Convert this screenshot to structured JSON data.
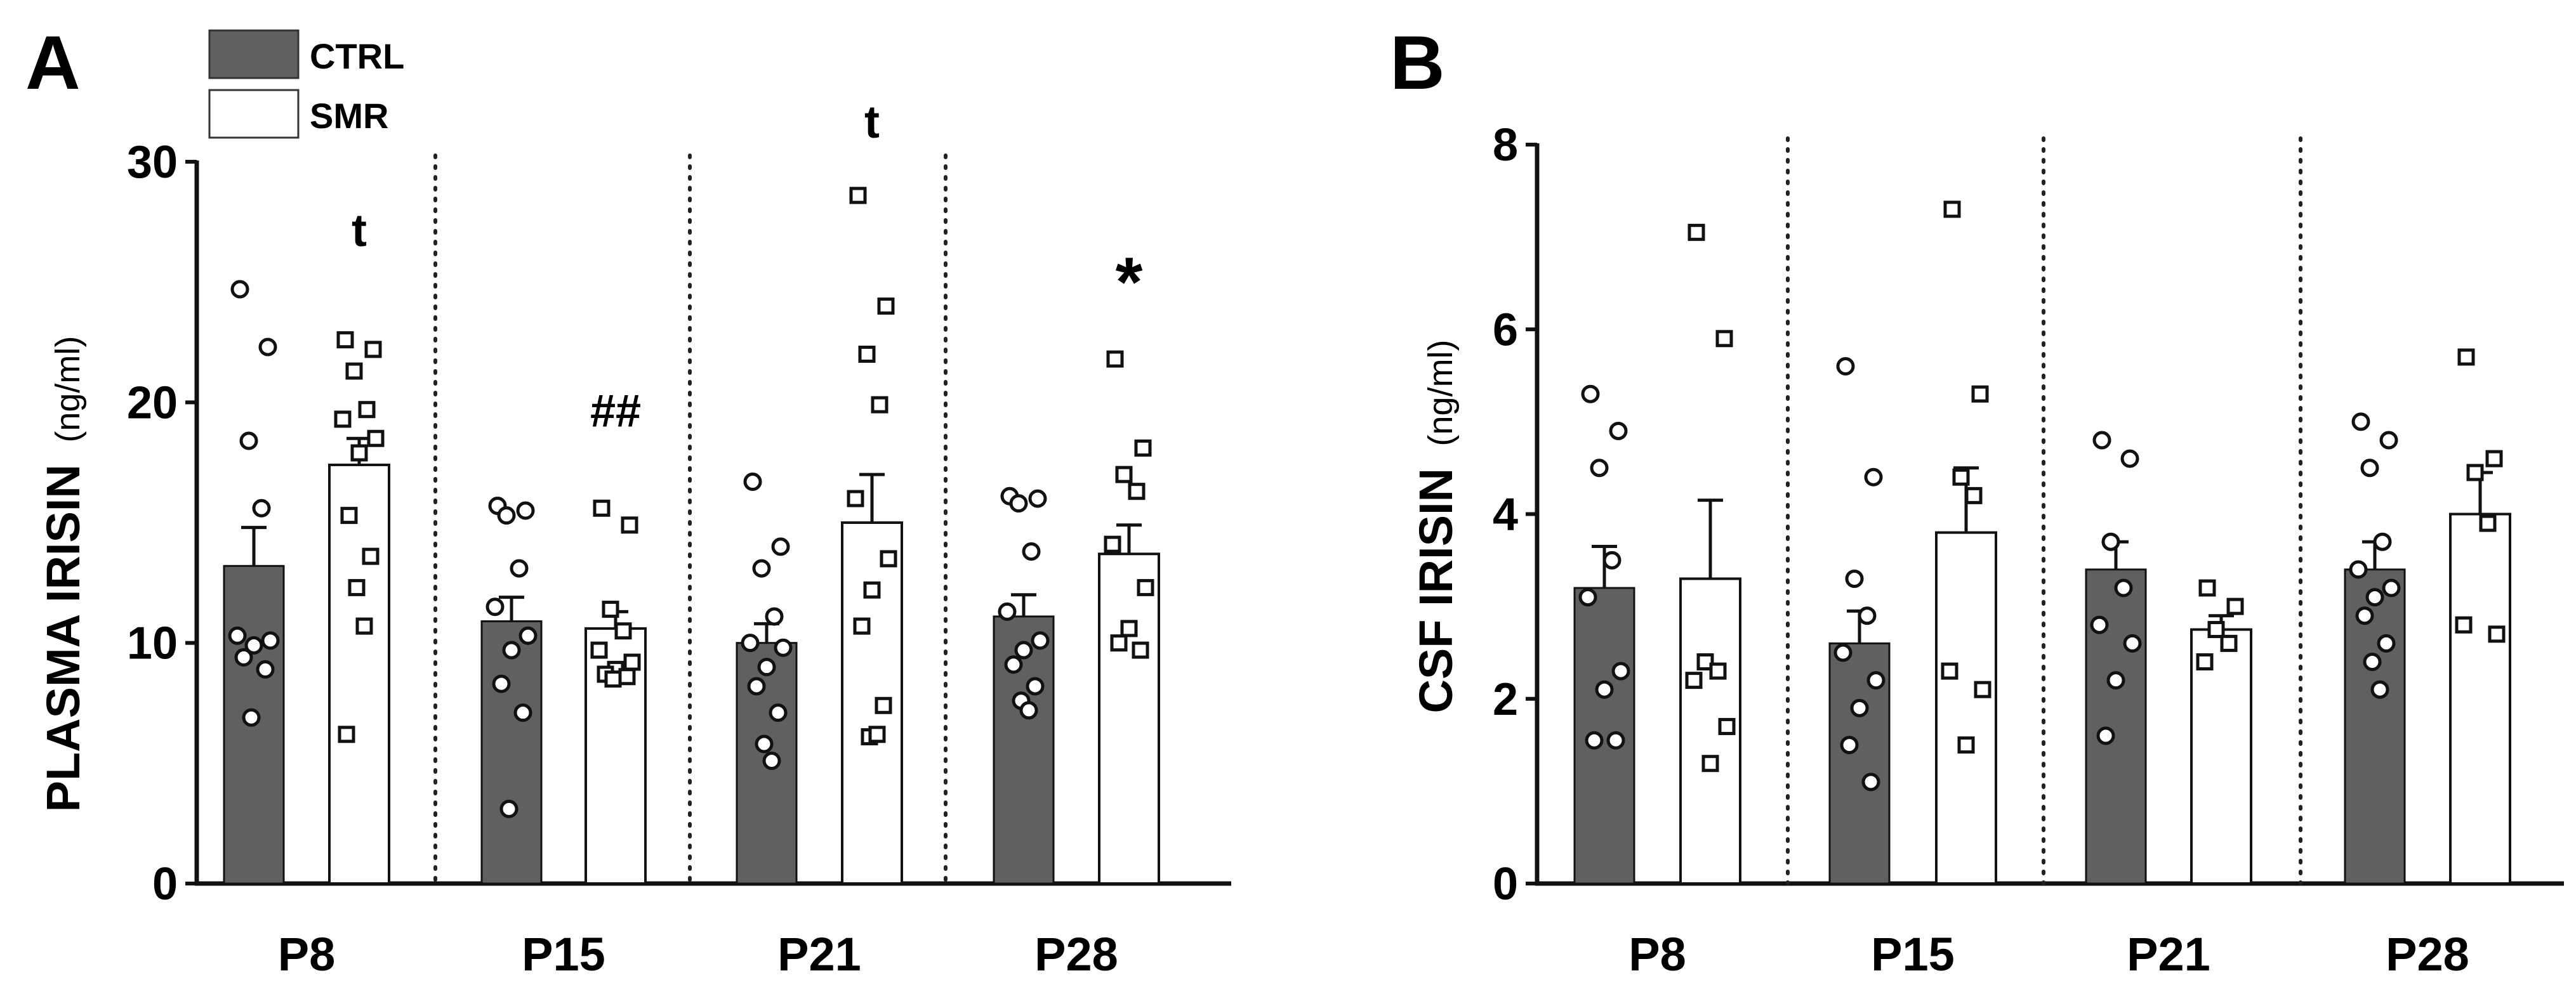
{
  "legend": {
    "items": [
      {
        "label": "CTRL",
        "fill": "#606060"
      },
      {
        "label": "SMR",
        "fill": "#ffffff"
      }
    ]
  },
  "colors": {
    "ctrl": "#606060",
    "smr": "#ffffff",
    "stroke": "#111111",
    "text": "#000000"
  },
  "chart_data": [
    {
      "panel": "A",
      "type": "bar",
      "ylabel_main": "PLASMA IRISIN",
      "ylabel_unit": "(ng/ml)",
      "ylim": [
        0,
        30
      ],
      "yticks": [
        0,
        10,
        20,
        30
      ],
      "categories": [
        "P8",
        "P15",
        "P21",
        "P28"
      ],
      "series": [
        {
          "name": "CTRL",
          "values": [
            13.2,
            10.9,
            10.0,
            11.1
          ],
          "sem": [
            1.6,
            1.0,
            0.8,
            0.9
          ],
          "points": [
            [
              24.7,
              22.3,
              18.4,
              15.6,
              10.3,
              10.1,
              9.9,
              9.4,
              8.9,
              6.9
            ],
            [
              15.7,
              15.5,
              15.3,
              13.1,
              11.5,
              10.3,
              9.7,
              8.3,
              7.1,
              3.1
            ],
            [
              16.7,
              14.0,
              13.1,
              11.1,
              10.0,
              9.8,
              9.0,
              8.2,
              7.1,
              5.8,
              5.1
            ],
            [
              16.1,
              16.0,
              15.8,
              13.8,
              11.3,
              10.1,
              9.7,
              9.1,
              8.2,
              7.6,
              7.2
            ]
          ]
        },
        {
          "name": "SMR",
          "values": [
            17.4,
            10.6,
            15.0,
            13.7
          ],
          "sem": [
            1.1,
            0.7,
            2.0,
            1.2
          ],
          "points": [
            [
              22.6,
              22.2,
              21.3,
              19.7,
              19.3,
              18.5,
              17.9,
              15.3,
              13.6,
              12.3,
              10.7,
              6.2
            ],
            [
              15.6,
              14.9,
              11.4,
              10.5,
              9.7,
              9.2,
              8.9,
              8.7,
              8.6,
              8.5
            ],
            [
              28.6,
              24.0,
              22.0,
              19.9,
              16.0,
              13.5,
              12.2,
              10.7,
              7.4,
              6.1,
              6.2
            ],
            [
              21.8,
              18.1,
              17.0,
              16.3,
              14.1,
              12.3,
              10.6,
              10.0,
              9.7
            ]
          ]
        }
      ],
      "annotations": [
        {
          "category": "P8",
          "series": "SMR",
          "text": "t",
          "y": 26.5
        },
        {
          "category": "P15",
          "series": "SMR",
          "text": "##",
          "y": 19.0
        },
        {
          "category": "P21",
          "series": "SMR",
          "text": "t",
          "y": 31.0
        },
        {
          "category": "P28",
          "series": "SMR",
          "text": "*",
          "y": 24.0
        }
      ]
    },
    {
      "panel": "B",
      "type": "bar",
      "ylabel_main": "CSF IRISIN",
      "ylabel_unit": "(ng/ml)",
      "ylim": [
        0,
        8
      ],
      "yticks": [
        0,
        2,
        4,
        6,
        8
      ],
      "categories": [
        "P8",
        "P15",
        "P21",
        "P28"
      ],
      "series": [
        {
          "name": "CTRL",
          "values": [
            3.2,
            2.6,
            3.4,
            3.4
          ],
          "sem": [
            0.45,
            0.35,
            0.3,
            0.3
          ],
          "points": [
            [
              5.3,
              4.9,
              4.5,
              3.5,
              3.1,
              2.3,
              2.1,
              1.55,
              1.55
            ],
            [
              5.6,
              4.4,
              3.3,
              2.9,
              2.5,
              2.2,
              1.9,
              1.5,
              1.1
            ],
            [
              4.8,
              4.6,
              3.7,
              3.2,
              2.8,
              2.6,
              2.2,
              1.6
            ],
            [
              5.0,
              4.8,
              4.5,
              3.7,
              3.4,
              3.2,
              3.1,
              2.9,
              2.6,
              2.4,
              2.1
            ]
          ]
        },
        {
          "name": "SMR",
          "values": [
            3.3,
            3.8,
            2.75,
            4.0
          ],
          "sem": [
            0.85,
            0.7,
            0.15,
            0.45
          ],
          "points": [
            [
              7.05,
              5.9,
              2.4,
              2.3,
              2.2,
              1.7,
              1.3
            ],
            [
              7.3,
              5.3,
              4.4,
              4.2,
              2.3,
              2.1,
              1.5
            ],
            [
              3.2,
              3.0,
              2.75,
              2.6,
              2.4
            ],
            [
              5.7,
              4.6,
              4.45,
              3.9,
              2.8,
              2.7
            ]
          ]
        }
      ],
      "annotations": []
    }
  ]
}
